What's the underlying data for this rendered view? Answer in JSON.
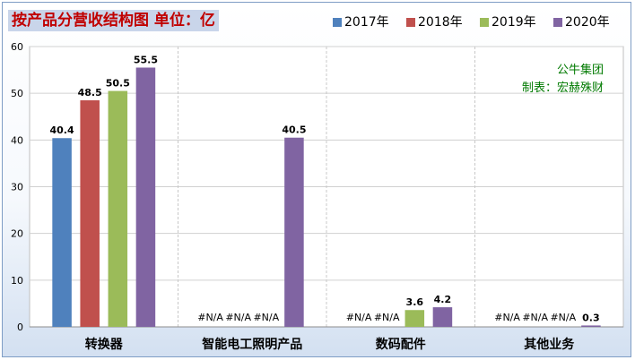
{
  "title": "按产品分营收结构图 单位：亿",
  "source": {
    "line1": "公牛集团",
    "line2": "制表：宏赫殊财"
  },
  "chart_data": {
    "type": "bar",
    "categories": [
      "转换器",
      "智能电工照明产品",
      "数码配件",
      "其他业务"
    ],
    "series": [
      {
        "name": "2017年",
        "color": "#4f81bd",
        "values": [
          40.4,
          null,
          null,
          null
        ],
        "labels": [
          "40.4",
          "#N/A",
          "#N/A",
          "#N/A"
        ]
      },
      {
        "name": "2018年",
        "color": "#c0504d",
        "values": [
          48.5,
          null,
          null,
          null
        ],
        "labels": [
          "48.5",
          "#N/A",
          "#N/A",
          "#N/A"
        ]
      },
      {
        "name": "2019年",
        "color": "#9bbb59",
        "values": [
          50.5,
          null,
          3.6,
          null
        ],
        "labels": [
          "50.5",
          "#N/A",
          "3.6",
          "#N/A"
        ]
      },
      {
        "name": "2020年",
        "color": "#8064a2",
        "values": [
          55.5,
          40.5,
          4.2,
          0.3
        ],
        "labels": [
          "55.5",
          "40.5",
          "4.2",
          "0.3"
        ]
      }
    ],
    "ylim": [
      0,
      60
    ],
    "yticks": [
      0,
      10,
      20,
      30,
      40,
      50,
      60
    ],
    "grid": true,
    "legend_position": "top-right"
  }
}
